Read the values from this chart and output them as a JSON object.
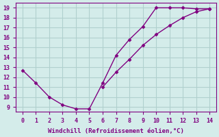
{
  "line1_x": [
    0,
    1,
    2,
    3,
    4,
    5,
    6,
    7,
    8,
    9,
    10,
    11,
    12,
    13,
    14
  ],
  "line1_y": [
    12.7,
    11.4,
    10.0,
    9.2,
    8.8,
    8.8,
    11.4,
    14.2,
    15.8,
    17.1,
    19.0,
    19.0,
    19.0,
    18.9,
    18.9
  ],
  "line2_x": [
    6,
    7,
    8,
    9,
    10,
    11,
    12,
    13,
    14
  ],
  "line2_y": [
    11.0,
    12.5,
    13.8,
    15.2,
    16.3,
    17.2,
    18.0,
    18.6,
    18.9
  ],
  "line_color": "#800080",
  "bg_color": "#d4ecea",
  "grid_color": "#b0d0ce",
  "xlabel": "Windchill (Refroidissement éolien,°C)",
  "xlim": [
    -0.5,
    14.5
  ],
  "ylim": [
    8.5,
    19.5
  ],
  "xticks": [
    0,
    1,
    2,
    3,
    4,
    5,
    6,
    7,
    8,
    9,
    10,
    11,
    12,
    13,
    14
  ],
  "yticks": [
    9,
    10,
    11,
    12,
    13,
    14,
    15,
    16,
    17,
    18,
    19
  ],
  "tick_color": "#800080",
  "label_color": "#800080",
  "marker": "D",
  "markersize": 2.5,
  "linewidth": 1.0
}
